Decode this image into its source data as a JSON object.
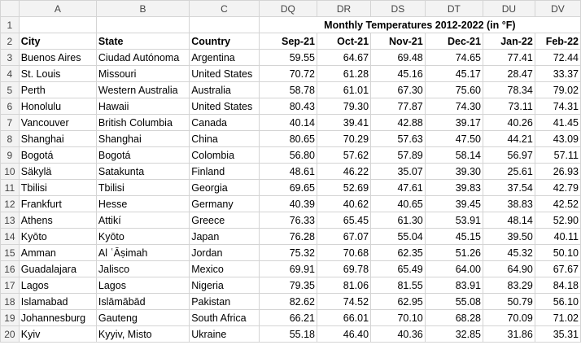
{
  "columns": [
    "A",
    "B",
    "C",
    "DQ",
    "DR",
    "DS",
    "DT",
    "DU",
    "DV"
  ],
  "title": "Monthly Temperatures 2012-2022 (in °F)",
  "headers": {
    "city": "City",
    "state": "State",
    "country": "Country",
    "months": [
      "Sep-21",
      "Oct-21",
      "Nov-21",
      "Dec-21",
      "Jan-22",
      "Feb-22"
    ]
  },
  "rows": [
    {
      "num": "3",
      "city": "Buenos Aires",
      "state": "Ciudad Autónoma",
      "country": "Argentina",
      "values": [
        "59.55",
        "64.67",
        "69.48",
        "74.65",
        "77.41",
        "72.44"
      ]
    },
    {
      "num": "4",
      "city": "St. Louis",
      "state": "Missouri",
      "country": "United States",
      "values": [
        "70.72",
        "61.28",
        "45.16",
        "45.17",
        "28.47",
        "33.37"
      ]
    },
    {
      "num": "5",
      "city": "Perth",
      "state": "Western Australia",
      "country": "Australia",
      "values": [
        "58.78",
        "61.01",
        "67.30",
        "75.60",
        "78.34",
        "79.02"
      ]
    },
    {
      "num": "6",
      "city": "Honolulu",
      "state": "Hawaii",
      "country": "United States",
      "values": [
        "80.43",
        "79.30",
        "77.87",
        "74.30",
        "73.11",
        "74.31"
      ]
    },
    {
      "num": "7",
      "city": "Vancouver",
      "state": "British Columbia",
      "country": "Canada",
      "values": [
        "40.14",
        "39.41",
        "42.88",
        "39.17",
        "40.26",
        "41.45"
      ]
    },
    {
      "num": "8",
      "city": "Shanghai",
      "state": "Shanghai",
      "country": "China",
      "values": [
        "80.65",
        "70.29",
        "57.63",
        "47.50",
        "44.21",
        "43.09"
      ]
    },
    {
      "num": "9",
      "city": "Bogotá",
      "state": "Bogotá",
      "country": "Colombia",
      "values": [
        "56.80",
        "57.62",
        "57.89",
        "58.14",
        "56.97",
        "57.11"
      ]
    },
    {
      "num": "10",
      "city": "Säkylä",
      "state": "Satakunta",
      "country": "Finland",
      "values": [
        "48.61",
        "46.22",
        "35.07",
        "39.30",
        "25.61",
        "26.93"
      ]
    },
    {
      "num": "11",
      "city": "Tbilisi",
      "state": "Tbilisi",
      "country": "Georgia",
      "values": [
        "69.65",
        "52.69",
        "47.61",
        "39.83",
        "37.54",
        "42.79"
      ]
    },
    {
      "num": "12",
      "city": "Frankfurt",
      "state": "Hesse",
      "country": "Germany",
      "values": [
        "40.39",
        "40.62",
        "40.65",
        "39.45",
        "38.83",
        "42.52"
      ]
    },
    {
      "num": "13",
      "city": "Athens",
      "state": "Attikí",
      "country": "Greece",
      "values": [
        "76.33",
        "65.45",
        "61.30",
        "53.91",
        "48.14",
        "52.90"
      ]
    },
    {
      "num": "14",
      "city": "Kyōto",
      "state": "Kyōto",
      "country": "Japan",
      "values": [
        "76.28",
        "67.07",
        "55.04",
        "45.15",
        "39.50",
        "40.11"
      ]
    },
    {
      "num": "15",
      "city": "Amman",
      "state": "Al ʿĀṣimah",
      "country": "Jordan",
      "values": [
        "75.32",
        "70.68",
        "62.35",
        "51.26",
        "45.32",
        "50.10"
      ]
    },
    {
      "num": "16",
      "city": "Guadalajara",
      "state": "Jalisco",
      "country": "Mexico",
      "values": [
        "69.91",
        "69.78",
        "65.49",
        "64.00",
        "64.90",
        "67.67"
      ]
    },
    {
      "num": "17",
      "city": "Lagos",
      "state": "Lagos",
      "country": "Nigeria",
      "values": [
        "79.35",
        "81.06",
        "81.55",
        "83.91",
        "83.29",
        "84.18"
      ]
    },
    {
      "num": "18",
      "city": "Islamabad",
      "state": "Islāmābād",
      "country": "Pakistan",
      "values": [
        "82.62",
        "74.52",
        "62.95",
        "55.08",
        "50.79",
        "56.10"
      ]
    },
    {
      "num": "19",
      "city": "Johannesburg",
      "state": "Gauteng",
      "country": "South Africa",
      "values": [
        "66.21",
        "66.01",
        "70.10",
        "68.28",
        "70.09",
        "71.02"
      ]
    },
    {
      "num": "20",
      "city": "Kyiv",
      "state": "Kyyiv, Misto",
      "country": "Ukraine",
      "values": [
        "55.18",
        "46.40",
        "40.36",
        "32.85",
        "31.86",
        "35.31"
      ]
    }
  ]
}
